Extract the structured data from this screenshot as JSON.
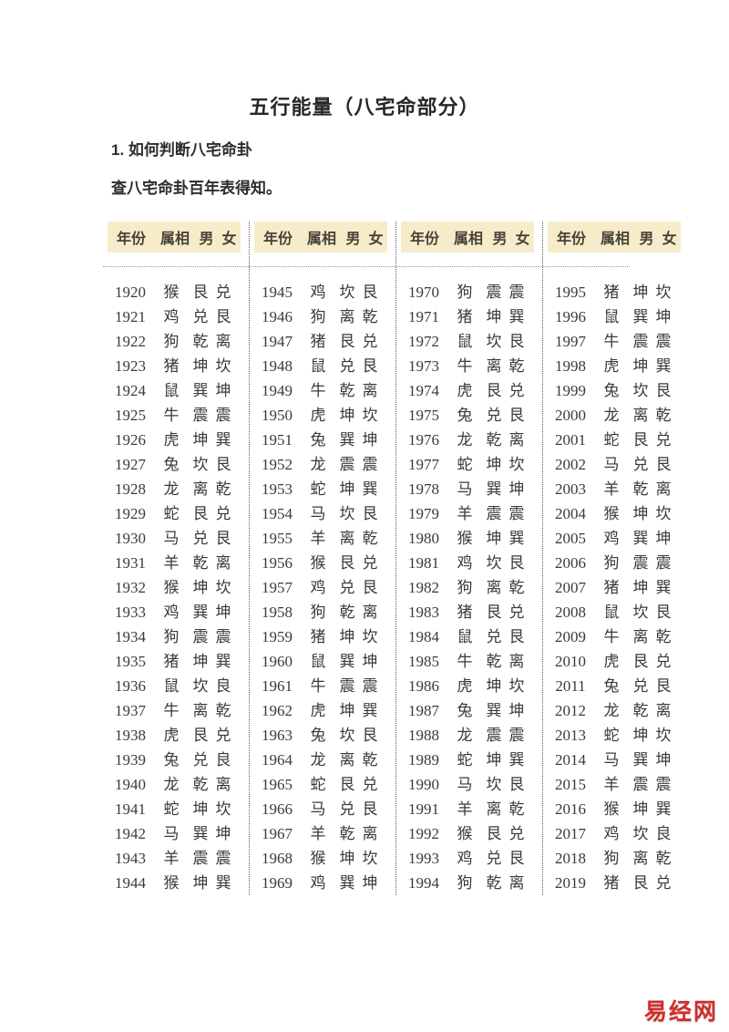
{
  "page": {
    "title": "五行能量（八宅命部分）",
    "section_heading": "1. 如何判断八宅命卦",
    "intro": "查八宅命卦百年表得知。",
    "watermark": "易经网",
    "watermark_color": "#cd2f2b"
  },
  "table": {
    "header": [
      "年份",
      "属相",
      "男",
      "女"
    ],
    "header_bg": "#f7ecca",
    "columns": [
      "year",
      "zodiac",
      "male_gua",
      "female_gua"
    ],
    "groups": [
      {
        "rows": [
          [
            "1920",
            "猴",
            "艮",
            "兑"
          ],
          [
            "1921",
            "鸡",
            "兑",
            "艮"
          ],
          [
            "1922",
            "狗",
            "乾",
            "离"
          ],
          [
            "1923",
            "猪",
            "坤",
            "坎"
          ],
          [
            "1924",
            "鼠",
            "巽",
            "坤"
          ],
          [
            "1925",
            "牛",
            "震",
            "震"
          ],
          [
            "1926",
            "虎",
            "坤",
            "巽"
          ],
          [
            "1927",
            "兔",
            "坎",
            "艮"
          ],
          [
            "1928",
            "龙",
            "离",
            "乾"
          ],
          [
            "1929",
            "蛇",
            "艮",
            "兑"
          ],
          [
            "1930",
            "马",
            "兑",
            "艮"
          ],
          [
            "1931",
            "羊",
            "乾",
            "离"
          ],
          [
            "1932",
            "猴",
            "坤",
            "坎"
          ],
          [
            "1933",
            "鸡",
            "巽",
            "坤"
          ],
          [
            "1934",
            "狗",
            "震",
            "震"
          ],
          [
            "1935",
            "猪",
            "坤",
            "巽"
          ],
          [
            "1936",
            "鼠",
            "坎",
            "良"
          ],
          [
            "1937",
            "牛",
            "离",
            "乾"
          ],
          [
            "1938",
            "虎",
            "艮",
            "兑"
          ],
          [
            "1939",
            "兔",
            "兑",
            "良"
          ],
          [
            "1940",
            "龙",
            "乾",
            "离"
          ],
          [
            "1941",
            "蛇",
            "坤",
            "坎"
          ],
          [
            "1942",
            "马",
            "巽",
            "坤"
          ],
          [
            "1943",
            "羊",
            "震",
            "震"
          ],
          [
            "1944",
            "猴",
            "坤",
            "巽"
          ]
        ]
      },
      {
        "rows": [
          [
            "1945",
            "鸡",
            "坎",
            "艮"
          ],
          [
            "1946",
            "狗",
            "离",
            "乾"
          ],
          [
            "1947",
            "猪",
            "艮",
            "兑"
          ],
          [
            "1948",
            "鼠",
            "兑",
            "艮"
          ],
          [
            "1949",
            "牛",
            "乾",
            "离"
          ],
          [
            "1950",
            "虎",
            "坤",
            "坎"
          ],
          [
            "1951",
            "兔",
            "巽",
            "坤"
          ],
          [
            "1952",
            "龙",
            "震",
            "震"
          ],
          [
            "1953",
            "蛇",
            "坤",
            "巽"
          ],
          [
            "1954",
            "马",
            "坎",
            "艮"
          ],
          [
            "1955",
            "羊",
            "离",
            "乾"
          ],
          [
            "1956",
            "猴",
            "艮",
            "兑"
          ],
          [
            "1957",
            "鸡",
            "兑",
            "艮"
          ],
          [
            "1958",
            "狗",
            "乾",
            "离"
          ],
          [
            "1959",
            "猪",
            "坤",
            "坎"
          ],
          [
            "1960",
            "鼠",
            "巽",
            "坤"
          ],
          [
            "1961",
            "牛",
            "震",
            "震"
          ],
          [
            "1962",
            "虎",
            "坤",
            "巽"
          ],
          [
            "1963",
            "兔",
            "坎",
            "艮"
          ],
          [
            "1964",
            "龙",
            "离",
            "乾"
          ],
          [
            "1965",
            "蛇",
            "艮",
            "兑"
          ],
          [
            "1966",
            "马",
            "兑",
            "艮"
          ],
          [
            "1967",
            "羊",
            "乾",
            "离"
          ],
          [
            "1968",
            "猴",
            "坤",
            "坎"
          ],
          [
            "1969",
            "鸡",
            "巽",
            "坤"
          ]
        ]
      },
      {
        "rows": [
          [
            "1970",
            "狗",
            "震",
            "震"
          ],
          [
            "1971",
            "猪",
            "坤",
            "巽"
          ],
          [
            "1972",
            "鼠",
            "坎",
            "艮"
          ],
          [
            "1973",
            "牛",
            "离",
            "乾"
          ],
          [
            "1974",
            "虎",
            "艮",
            "兑"
          ],
          [
            "1975",
            "兔",
            "兑",
            "艮"
          ],
          [
            "1976",
            "龙",
            "乾",
            "离"
          ],
          [
            "1977",
            "蛇",
            "坤",
            "坎"
          ],
          [
            "1978",
            "马",
            "巽",
            "坤"
          ],
          [
            "1979",
            "羊",
            "震",
            "震"
          ],
          [
            "1980",
            "猴",
            "坤",
            "巽"
          ],
          [
            "1981",
            "鸡",
            "坎",
            "艮"
          ],
          [
            "1982",
            "狗",
            "离",
            "乾"
          ],
          [
            "1983",
            "猪",
            "艮",
            "兑"
          ],
          [
            "1984",
            "鼠",
            "兑",
            "艮"
          ],
          [
            "1985",
            "牛",
            "乾",
            "离"
          ],
          [
            "1986",
            "虎",
            "坤",
            "坎"
          ],
          [
            "1987",
            "兔",
            "巽",
            "坤"
          ],
          [
            "1988",
            "龙",
            "震",
            "震"
          ],
          [
            "1989",
            "蛇",
            "坤",
            "巽"
          ],
          [
            "1990",
            "马",
            "坎",
            "艮"
          ],
          [
            "1991",
            "羊",
            "离",
            "乾"
          ],
          [
            "1992",
            "猴",
            "艮",
            "兑"
          ],
          [
            "1993",
            "鸡",
            "兑",
            "艮"
          ],
          [
            "1994",
            "狗",
            "乾",
            "离"
          ]
        ]
      },
      {
        "rows": [
          [
            "1995",
            "猪",
            "坤",
            "坎"
          ],
          [
            "1996",
            "鼠",
            "巽",
            "坤"
          ],
          [
            "1997",
            "牛",
            "震",
            "震"
          ],
          [
            "1998",
            "虎",
            "坤",
            "巽"
          ],
          [
            "1999",
            "兔",
            "坎",
            "艮"
          ],
          [
            "2000",
            "龙",
            "离",
            "乾"
          ],
          [
            "2001",
            "蛇",
            "艮",
            "兑"
          ],
          [
            "2002",
            "马",
            "兑",
            "艮"
          ],
          [
            "2003",
            "羊",
            "乾",
            "离"
          ],
          [
            "2004",
            "猴",
            "坤",
            "坎"
          ],
          [
            "2005",
            "鸡",
            "巽",
            "坤"
          ],
          [
            "2006",
            "狗",
            "震",
            "震"
          ],
          [
            "2007",
            "猪",
            "坤",
            "巽"
          ],
          [
            "2008",
            "鼠",
            "坎",
            "艮"
          ],
          [
            "2009",
            "牛",
            "离",
            "乾"
          ],
          [
            "2010",
            "虎",
            "艮",
            "兑"
          ],
          [
            "2011",
            "兔",
            "兑",
            "艮"
          ],
          [
            "2012",
            "龙",
            "乾",
            "离"
          ],
          [
            "2013",
            "蛇",
            "坤",
            "坎"
          ],
          [
            "2014",
            "马",
            "巽",
            "坤"
          ],
          [
            "2015",
            "羊",
            "震",
            "震"
          ],
          [
            "2016",
            "猴",
            "坤",
            "巽"
          ],
          [
            "2017",
            "鸡",
            "坎",
            "良"
          ],
          [
            "2018",
            "狗",
            "离",
            "乾"
          ],
          [
            "2019",
            "猪",
            "艮",
            "兑"
          ]
        ]
      }
    ]
  }
}
